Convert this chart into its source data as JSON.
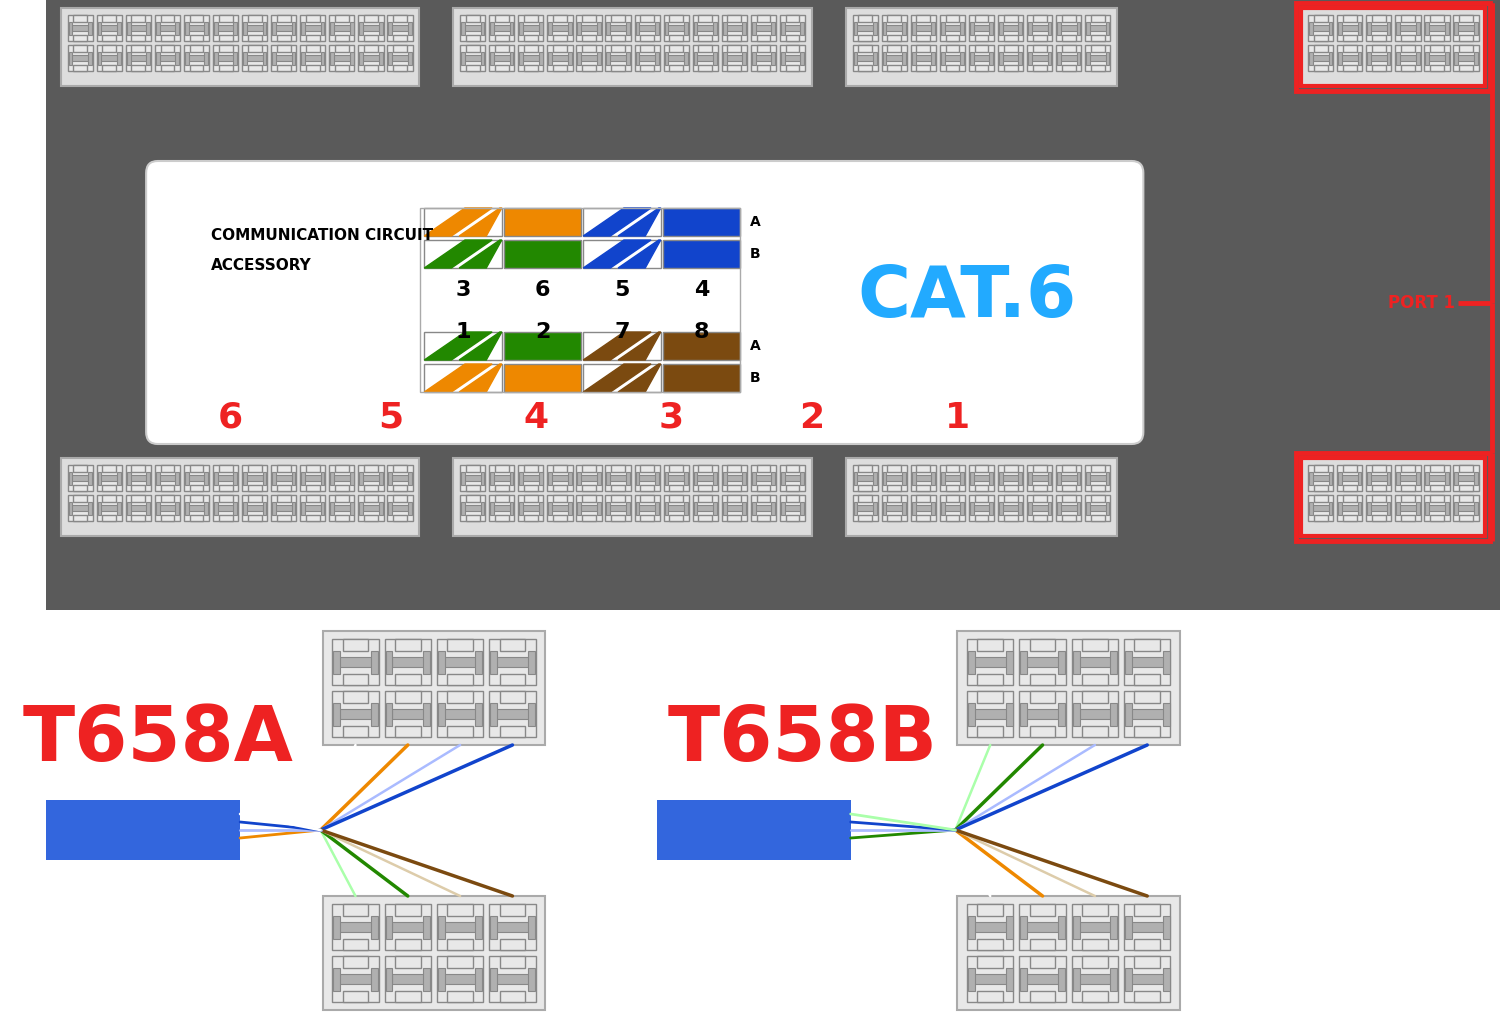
{
  "bg_color": "#5a5a5a",
  "white_bg": "#ffffff",
  "red_color": "#ee2222",
  "blue_color": "#1144cc",
  "cyan_color": "#22aaff",
  "orange_color": "#ee8800",
  "green_color": "#228800",
  "brown_color": "#7b4a10",
  "light_blue_color": "#6688ee",
  "white_stripe_orange": "#f08020",
  "white_stripe_green": "#228800",
  "white_stripe_blue": "#1144cc",
  "white_stripe_brown": "#7b4a10",
  "cat6_text": "CAT.6",
  "port1_text": "PORT 1",
  "t658a_text": "T658A",
  "t658b_text": "T658B",
  "top_numbers": [
    "3",
    "6",
    "5",
    "4"
  ],
  "bottom_numbers": [
    "1",
    "2",
    "7",
    "8"
  ],
  "port_numbers_red": [
    "6",
    "5",
    "4",
    "3",
    "2",
    "1"
  ],
  "comm_line1": "COMMUNICATION CIRCUIT",
  "comm_line2": "ACCESSORY"
}
